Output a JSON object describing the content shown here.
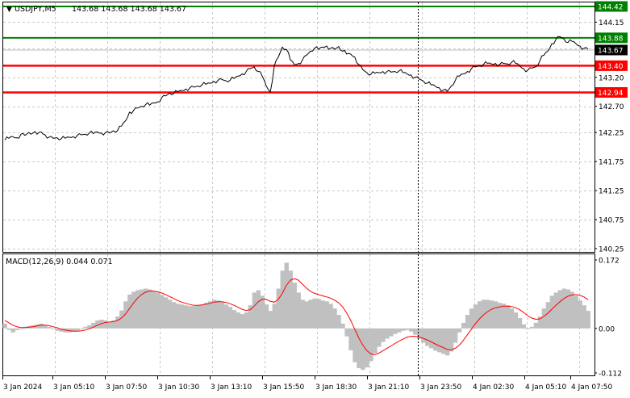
{
  "header": {
    "symbol_tf": "USDJPY,M5",
    "ohlc": "143.68 143.68 143.68 143.67"
  },
  "chart_data": [
    {
      "type": "line",
      "title": "USDJPY,M5  143.68 143.68 143.68 143.67",
      "ylim": [
        140.25,
        144.5
      ],
      "y_ticks": [
        "144.15",
        "143.70",
        "143.20",
        "142.70",
        "142.25",
        "141.75",
        "141.25",
        "140.75",
        "140.25"
      ],
      "levels": [
        {
          "value": 144.42,
          "label": "144.42",
          "color": "#008000"
        },
        {
          "value": 143.88,
          "label": "143.88",
          "color": "#008000"
        },
        {
          "value": 143.4,
          "label": "143.40",
          "color": "#ff0000"
        },
        {
          "value": 142.94,
          "label": "142.94",
          "color": "#ff0000"
        }
      ],
      "current": {
        "value": 143.67,
        "label": "143.67"
      },
      "x_ticks": [
        "3 Jan 2024",
        "3 Jan 05:10",
        "3 Jan 07:50",
        "3 Jan 10:30",
        "3 Jan 13:10",
        "3 Jan 15:50",
        "3 Jan 18:30",
        "3 Jan 21:10",
        "3 Jan 23:50",
        "4 Jan 02:30",
        "4 Jan 05:10",
        "4 Jan 07:50"
      ],
      "series": [
        {
          "name": "USDJPY",
          "x": [
            0,
            1,
            2,
            3,
            4,
            5,
            6,
            7,
            8,
            9,
            10,
            11,
            12,
            13,
            14,
            15,
            16,
            17,
            18,
            19,
            20,
            21,
            22,
            23,
            24,
            25,
            26,
            27,
            28,
            29,
            30,
            31,
            32,
            33,
            34,
            35,
            36,
            37,
            38,
            39,
            40,
            41,
            42,
            43,
            44,
            45,
            46,
            47,
            48,
            49,
            50,
            51,
            52,
            53,
            54,
            55,
            56,
            57,
            58,
            59,
            60,
            61,
            62,
            63,
            64,
            65,
            66,
            67,
            68,
            69,
            70,
            71,
            72,
            73,
            74,
            75,
            76,
            77,
            78,
            79,
            80,
            81,
            82,
            83,
            84,
            85,
            86,
            87,
            88,
            89,
            90,
            91,
            92,
            93,
            94,
            95,
            96,
            97,
            98,
            99,
            100,
            101,
            102,
            103,
            104,
            105,
            106,
            107,
            108,
            109,
            110,
            111,
            112,
            113,
            114,
            115,
            116,
            117,
            118,
            119,
            120,
            121,
            122,
            123,
            124,
            125,
            126,
            127,
            128,
            129,
            130,
            131,
            132,
            133,
            134,
            135,
            136,
            137,
            138,
            139,
            140,
            141,
            142,
            143,
            144,
            145
          ],
          "values": [
            142.12,
            142.15,
            142.18,
            142.16,
            142.22,
            142.2,
            142.25,
            142.24,
            142.22,
            142.26,
            142.21,
            142.17,
            142.15,
            142.16,
            142.14,
            142.15,
            142.17,
            142.18,
            142.2,
            142.21,
            142.22,
            142.24,
            142.23,
            142.26,
            142.24,
            142.25,
            142.24,
            142.28,
            142.28,
            142.36,
            142.45,
            142.6,
            142.63,
            142.67,
            142.7,
            142.73,
            142.72,
            142.76,
            142.78,
            142.85,
            142.88,
            142.93,
            142.92,
            142.95,
            142.97,
            143.0,
            143.02,
            143.03,
            143.05,
            143.07,
            143.08,
            143.1,
            143.13,
            143.15,
            143.16,
            143.14,
            143.15,
            143.18,
            143.22,
            143.26,
            143.3,
            143.35,
            143.38,
            143.3,
            143.22,
            143.05,
            142.95,
            143.4,
            143.55,
            143.72,
            143.68,
            143.5,
            143.42,
            143.44,
            143.5,
            143.58,
            143.65,
            143.7,
            143.68,
            143.72,
            143.74,
            143.7,
            143.68,
            143.73,
            143.65,
            143.6,
            143.6,
            143.55,
            143.42,
            143.33,
            143.28,
            143.25,
            143.27,
            143.28,
            143.3,
            143.3,
            143.29,
            143.3,
            143.31,
            143.28,
            143.26,
            143.24,
            143.2,
            143.17,
            143.14,
            143.1,
            143.07,
            143.05,
            143.02,
            142.98,
            142.96,
            143.05,
            143.15,
            143.22,
            143.26,
            143.3,
            143.35,
            143.38,
            143.4,
            143.42,
            143.44,
            143.43,
            143.44,
            143.42,
            143.44,
            143.43,
            143.46,
            143.44,
            143.4,
            143.35,
            143.32,
            143.36,
            143.38,
            143.48,
            143.58,
            143.65,
            143.78,
            143.85,
            143.9,
            143.86,
            143.8,
            143.82,
            143.78,
            143.74,
            143.7,
            143.68
          ]
        }
      ]
    },
    {
      "type": "bar",
      "title": "MACD(12,26,9) 0.044 0.071",
      "ylim": [
        -0.112,
        0.172
      ],
      "y_ticks": [
        "0.172",
        "0.00",
        "-0.112"
      ],
      "series": [
        {
          "name": "MACD",
          "kind": "histogram",
          "color": "#c0c0c0",
          "x": [
            0,
            1,
            2,
            3,
            4,
            5,
            6,
            7,
            8,
            9,
            10,
            11,
            12,
            13,
            14,
            15,
            16,
            17,
            18,
            19,
            20,
            21,
            22,
            23,
            24,
            25,
            26,
            27,
            28,
            29,
            30,
            31,
            32,
            33,
            34,
            35,
            36,
            37,
            38,
            39,
            40,
            41,
            42,
            43,
            44,
            45,
            46,
            47,
            48,
            49,
            50,
            51,
            52,
            53,
            54,
            55,
            56,
            57,
            58,
            59,
            60,
            61,
            62,
            63,
            64,
            65,
            66,
            67,
            68,
            69,
            70,
            71,
            72,
            73,
            74,
            75,
            76,
            77,
            78,
            79,
            80,
            81,
            82,
            83,
            84,
            85,
            86,
            87,
            88,
            89,
            90,
            91,
            92,
            93,
            94,
            95,
            96,
            97,
            98,
            99,
            100,
            101,
            102,
            103,
            104,
            105,
            106,
            107,
            108,
            109,
            110,
            111,
            112,
            113,
            114,
            115,
            116,
            117,
            118,
            119,
            120,
            121,
            122,
            123,
            124,
            125,
            126,
            127,
            128,
            129,
            130,
            131,
            132,
            133,
            134,
            135,
            136,
            137,
            138,
            139,
            140,
            141,
            142,
            143,
            144,
            145
          ],
          "values": [
            0.012,
            -0.004,
            -0.01,
            -0.004,
            0.0,
            0.004,
            0.006,
            0.008,
            0.01,
            0.012,
            0.008,
            0.004,
            -0.002,
            -0.006,
            -0.008,
            -0.01,
            -0.01,
            -0.008,
            -0.006,
            -0.002,
            0.004,
            0.008,
            0.014,
            0.02,
            0.022,
            0.02,
            0.016,
            0.02,
            0.03,
            0.045,
            0.068,
            0.085,
            0.092,
            0.096,
            0.098,
            0.1,
            0.098,
            0.094,
            0.09,
            0.084,
            0.078,
            0.072,
            0.066,
            0.062,
            0.06,
            0.058,
            0.056,
            0.056,
            0.058,
            0.06,
            0.064,
            0.068,
            0.072,
            0.07,
            0.066,
            0.06,
            0.054,
            0.046,
            0.04,
            0.036,
            0.04,
            0.058,
            0.09,
            0.096,
            0.082,
            0.06,
            0.044,
            0.062,
            0.1,
            0.145,
            0.165,
            0.145,
            0.115,
            0.09,
            0.072,
            0.068,
            0.072,
            0.075,
            0.074,
            0.07,
            0.068,
            0.062,
            0.05,
            0.034,
            0.012,
            -0.02,
            -0.055,
            -0.085,
            -0.1,
            -0.104,
            -0.098,
            -0.082,
            -0.062,
            -0.046,
            -0.034,
            -0.026,
            -0.02,
            -0.014,
            -0.01,
            -0.006,
            -0.004,
            -0.008,
            -0.016,
            -0.026,
            -0.036,
            -0.044,
            -0.05,
            -0.056,
            -0.06,
            -0.064,
            -0.068,
            -0.058,
            -0.036,
            -0.01,
            0.014,
            0.034,
            0.05,
            0.06,
            0.068,
            0.072,
            0.072,
            0.07,
            0.068,
            0.064,
            0.062,
            0.058,
            0.05,
            0.04,
            0.026,
            0.01,
            0.0,
            0.004,
            0.014,
            0.03,
            0.05,
            0.066,
            0.082,
            0.09,
            0.096,
            0.1,
            0.098,
            0.092,
            0.082,
            0.07,
            0.058,
            0.044
          ]
        },
        {
          "name": "Signal",
          "kind": "line",
          "color": "#ff0000",
          "x": [
            0,
            1,
            2,
            3,
            4,
            5,
            6,
            7,
            8,
            9,
            10,
            11,
            12,
            13,
            14,
            15,
            16,
            17,
            18,
            19,
            20,
            21,
            22,
            23,
            24,
            25,
            26,
            27,
            28,
            29,
            30,
            31,
            32,
            33,
            34,
            35,
            36,
            37,
            38,
            39,
            40,
            41,
            42,
            43,
            44,
            45,
            46,
            47,
            48,
            49,
            50,
            51,
            52,
            53,
            54,
            55,
            56,
            57,
            58,
            59,
            60,
            61,
            62,
            63,
            64,
            65,
            66,
            67,
            68,
            69,
            70,
            71,
            72,
            73,
            74,
            75,
            76,
            77,
            78,
            79,
            80,
            81,
            82,
            83,
            84,
            85,
            86,
            87,
            88,
            89,
            90,
            91,
            92,
            93,
            94,
            95,
            96,
            97,
            98,
            99,
            100,
            101,
            102,
            103,
            104,
            105,
            106,
            107,
            108,
            109,
            110,
            111,
            112,
            113,
            114,
            115,
            116,
            117,
            118,
            119,
            120,
            121,
            122,
            123,
            124,
            125,
            126,
            127,
            128,
            129,
            130,
            131,
            132,
            133,
            134,
            135,
            136,
            137,
            138,
            139,
            140,
            141,
            142,
            143,
            144,
            145
          ],
          "values": [
            0.02,
            0.014,
            0.008,
            0.004,
            0.002,
            0.002,
            0.003,
            0.004,
            0.006,
            0.008,
            0.008,
            0.007,
            0.004,
            0.002,
            -0.002,
            -0.004,
            -0.006,
            -0.007,
            -0.007,
            -0.006,
            -0.004,
            -0.001,
            0.003,
            0.008,
            0.012,
            0.015,
            0.016,
            0.017,
            0.02,
            0.026,
            0.036,
            0.05,
            0.064,
            0.076,
            0.085,
            0.091,
            0.094,
            0.094,
            0.092,
            0.089,
            0.085,
            0.08,
            0.075,
            0.07,
            0.066,
            0.063,
            0.06,
            0.058,
            0.058,
            0.059,
            0.061,
            0.063,
            0.066,
            0.067,
            0.067,
            0.065,
            0.062,
            0.058,
            0.053,
            0.048,
            0.045,
            0.047,
            0.056,
            0.067,
            0.073,
            0.073,
            0.068,
            0.066,
            0.073,
            0.088,
            0.108,
            0.121,
            0.125,
            0.121,
            0.111,
            0.101,
            0.093,
            0.088,
            0.085,
            0.082,
            0.079,
            0.076,
            0.071,
            0.064,
            0.054,
            0.039,
            0.02,
            -0.002,
            -0.024,
            -0.042,
            -0.056,
            -0.064,
            -0.066,
            -0.062,
            -0.056,
            -0.05,
            -0.044,
            -0.038,
            -0.032,
            -0.027,
            -0.022,
            -0.02,
            -0.02,
            -0.022,
            -0.025,
            -0.029,
            -0.034,
            -0.039,
            -0.044,
            -0.048,
            -0.053,
            -0.054,
            -0.05,
            -0.042,
            -0.03,
            -0.016,
            -0.002,
            0.012,
            0.024,
            0.034,
            0.042,
            0.048,
            0.052,
            0.054,
            0.056,
            0.056,
            0.055,
            0.052,
            0.047,
            0.04,
            0.032,
            0.026,
            0.023,
            0.024,
            0.03,
            0.038,
            0.048,
            0.058,
            0.067,
            0.075,
            0.081,
            0.084,
            0.085,
            0.083,
            0.079,
            0.072
          ]
        }
      ]
    }
  ]
}
